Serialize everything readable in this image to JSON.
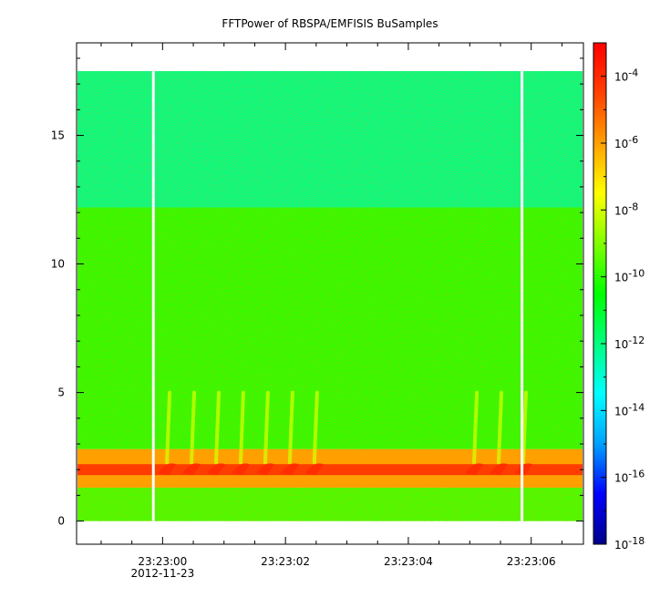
{
  "chart_data": {
    "type": "heatmap",
    "title": "FFTPower of RBSPA/EMFISIS  BuSamples",
    "xlabel": "",
    "ylabel": "",
    "x_axis": {
      "type": "time",
      "range": [
        "2012-11-23T23:22:58.60",
        "2012-11-23T23:23:06.85"
      ],
      "ticks": [
        {
          "value": "2012-11-23T23:23:00",
          "label": "23:23:00",
          "sublabel": "2012-11-23"
        },
        {
          "value": "2012-11-23T23:23:02",
          "label": "23:23:02"
        },
        {
          "value": "2012-11-23T23:23:04",
          "label": "23:23:04"
        },
        {
          "value": "2012-11-23T23:23:06",
          "label": "23:23:06"
        }
      ],
      "minor_tick_step_seconds": 0.5
    },
    "y_axis": {
      "range": [
        -0.9,
        18.6
      ],
      "ticks": [
        0,
        5,
        10,
        15
      ],
      "tick_labels": [
        "0",
        "5",
        "10",
        "15"
      ],
      "minor_tick_step": 1
    },
    "colorbar": {
      "scale": "log",
      "range": [
        1e-18,
        0.001
      ],
      "tick_values": [
        1e-18,
        1e-16,
        1e-14,
        1e-12,
        1e-10,
        1e-08,
        1e-06,
        0.0001
      ],
      "tick_labels": [
        {
          "base": "10",
          "exp": "-18"
        },
        {
          "base": "10",
          "exp": "-16"
        },
        {
          "base": "10",
          "exp": "-14"
        },
        {
          "base": "10",
          "exp": "-12"
        },
        {
          "base": "10",
          "exp": "-10"
        },
        {
          "base": "10",
          "exp": "-8"
        },
        {
          "base": "10",
          "exp": "-6"
        },
        {
          "base": "10",
          "exp": "-4"
        }
      ],
      "colormap": [
        "#00008b",
        "#0000ff",
        "#00a0ff",
        "#00ffff",
        "#00ff80",
        "#00ff00",
        "#80ff00",
        "#ffff00",
        "#ffa000",
        "#ff4000",
        "#ff0000"
      ]
    },
    "data_extent": {
      "y_min": 0,
      "y_max": 17.5
    },
    "data_gaps_seconds": [
      -0.15,
      5.85
    ],
    "regions": [
      {
        "y_from": 0,
        "y_to": 1.3,
        "power": 2e-10
      },
      {
        "y_from": 1.3,
        "y_to": 2.8,
        "power": 1e-06
      },
      {
        "y_from": 2.8,
        "y_to": 12.2,
        "power": 1e-10
      },
      {
        "y_from": 12.2,
        "y_to": 17.5,
        "power": 1e-12
      }
    ],
    "features": [
      {
        "label": "intense band",
        "y": 2.0,
        "power": 0.0001
      },
      {
        "label": "rising tones",
        "times_seconds": [
          0.1,
          0.5,
          0.9,
          1.3,
          1.7,
          2.1,
          2.5,
          5.1,
          5.5,
          5.9
        ],
        "y_from": 2.0,
        "y_to": 5.0,
        "power": 1e-08
      }
    ],
    "grid": false,
    "legend": "colorbar-right"
  }
}
